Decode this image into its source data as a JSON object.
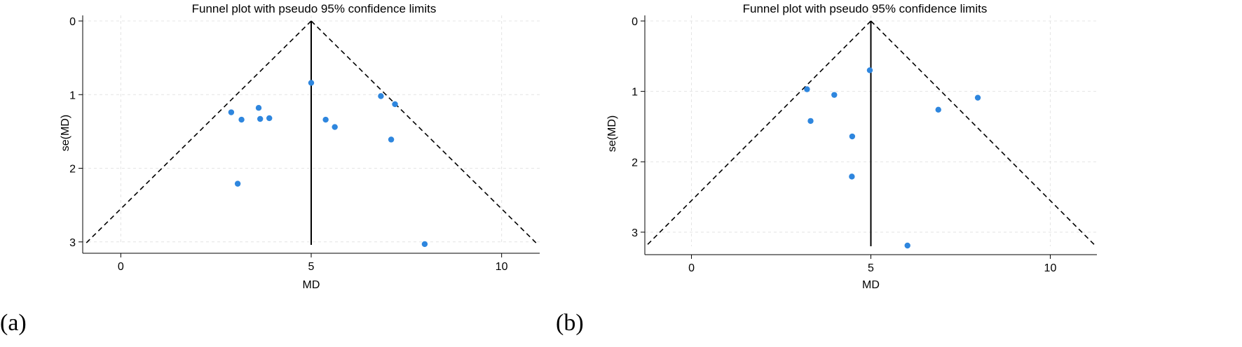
{
  "chart_data": [
    {
      "type": "scatter",
      "panel_label": "(a)",
      "title": "Funnel plot with pseudo 95% confidence limits",
      "xlabel": "MD",
      "ylabel": "se(MD)",
      "xlim": [
        -1.0,
        11.0
      ],
      "ylim": [
        0,
        3.04
      ],
      "y_reversed": true,
      "xticks": [
        0,
        5,
        10
      ],
      "yticks": [
        0,
        1,
        2,
        3
      ],
      "grid": true,
      "pooled_md": 5.0,
      "ci_max_se": 3.04,
      "point_color": "#2e86de",
      "points": [
        {
          "md": 5.0,
          "se": 0.84
        },
        {
          "md": 6.83,
          "se": 1.02
        },
        {
          "md": 7.2,
          "se": 1.13
        },
        {
          "md": 3.62,
          "se": 1.18
        },
        {
          "md": 2.9,
          "se": 1.24
        },
        {
          "md": 3.17,
          "se": 1.34
        },
        {
          "md": 3.66,
          "se": 1.33
        },
        {
          "md": 3.9,
          "se": 1.32
        },
        {
          "md": 5.38,
          "se": 1.34
        },
        {
          "md": 5.62,
          "se": 1.44
        },
        {
          "md": 7.1,
          "se": 1.61
        },
        {
          "md": 3.07,
          "se": 2.21
        },
        {
          "md": 7.98,
          "se": 3.03
        }
      ]
    },
    {
      "type": "scatter",
      "panel_label": "(b)",
      "title": "Funnel plot with pseudo 95% confidence limits",
      "xlabel": "MD",
      "ylabel": "se(MD)",
      "xlim": [
        -1.3,
        11.3
      ],
      "ylim": [
        0,
        3.2
      ],
      "y_reversed": true,
      "xticks": [
        0,
        5,
        10
      ],
      "yticks": [
        0,
        1,
        2,
        3
      ],
      "grid": true,
      "pooled_md": 5.0,
      "ci_max_se": 3.2,
      "point_color": "#2e86de",
      "points": [
        {
          "md": 4.97,
          "se": 0.7
        },
        {
          "md": 3.22,
          "se": 0.97
        },
        {
          "md": 3.98,
          "se": 1.05
        },
        {
          "md": 7.98,
          "se": 1.09
        },
        {
          "md": 6.88,
          "se": 1.26
        },
        {
          "md": 3.32,
          "se": 1.42
        },
        {
          "md": 4.48,
          "se": 1.64
        },
        {
          "md": 4.47,
          "se": 2.21
        },
        {
          "md": 6.02,
          "se": 3.19
        }
      ]
    }
  ]
}
